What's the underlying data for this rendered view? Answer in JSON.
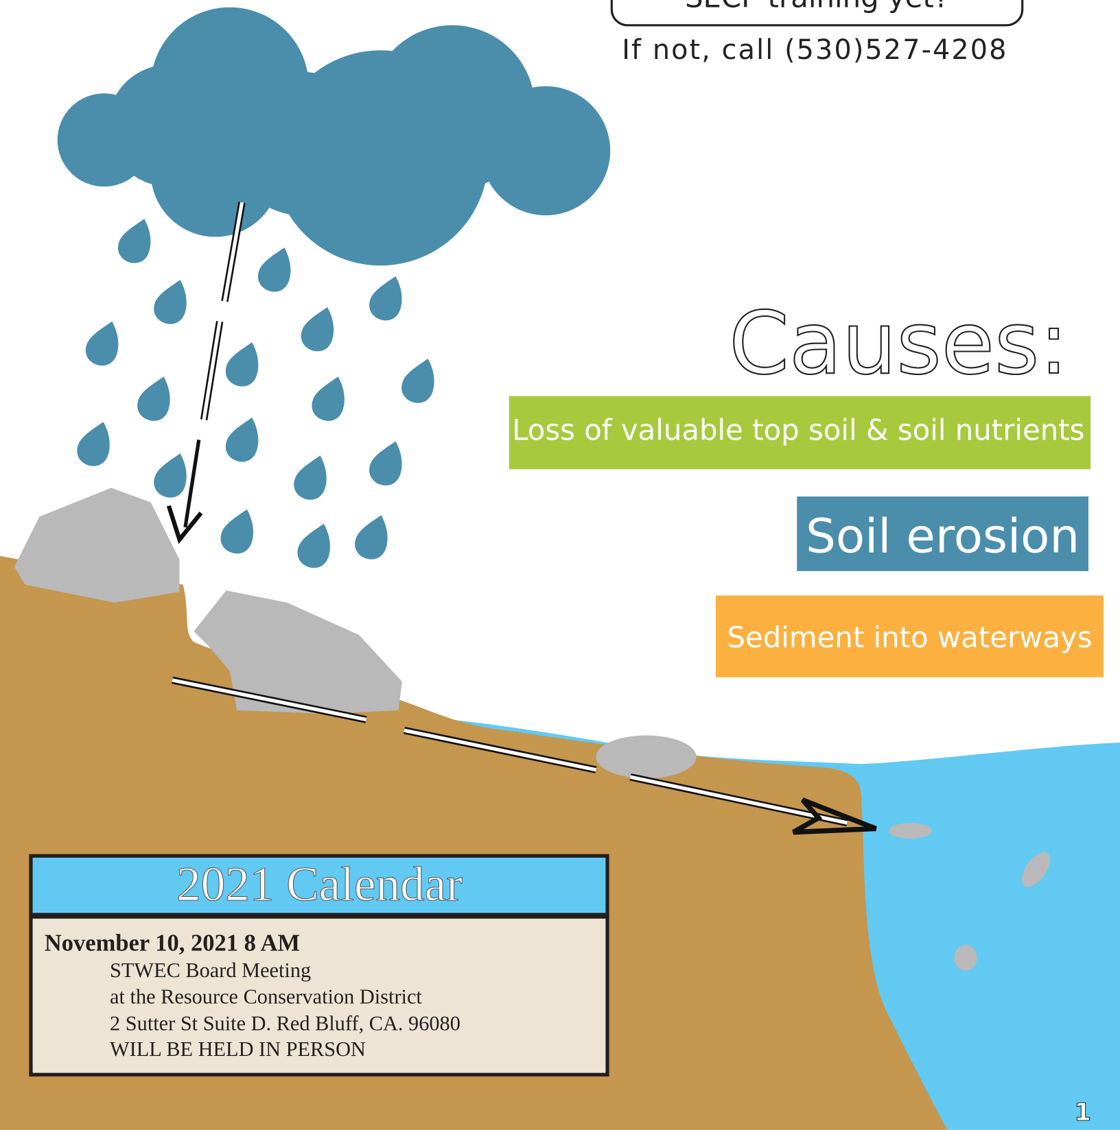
{
  "header": {
    "question": "SECP training yet?",
    "contact": "If not, call (530)527-4208"
  },
  "causes": {
    "title": "Causes:",
    "items": [
      "Loss of valuable top soil & soil nutrients",
      "Soil erosion",
      "Sediment into waterways"
    ]
  },
  "calendar": {
    "title": "2021 Calendar",
    "event": {
      "date": "November 10, 2021 8 AM",
      "lines": [
        "STWEC Board Meeting",
        "at the Resource Conservation District",
        "2 Sutter St Suite D. Red Bluff, CA. 96080",
        "WILL BE HELD IN PERSON"
      ]
    }
  },
  "page_number": "1"
}
